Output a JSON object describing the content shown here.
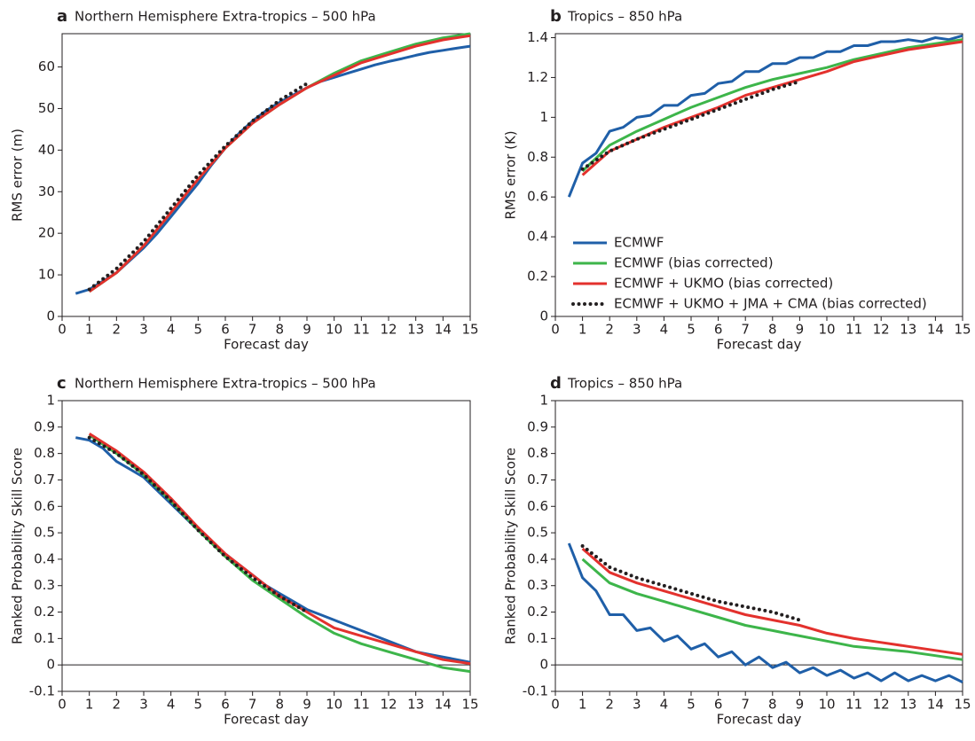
{
  "chart_data": [
    {
      "type": "line",
      "label": "a",
      "title": "Northern Hemisphere Extra-tropics – 500 hPa",
      "xlabel": "Forecast day",
      "ylabel": "RMS error (m)",
      "xlim": [
        0,
        15
      ],
      "xticks": [
        0,
        1,
        2,
        3,
        4,
        5,
        6,
        7,
        8,
        9,
        10,
        11,
        12,
        13,
        14,
        15
      ],
      "ylim": [
        0,
        68
      ],
      "yticks": [
        0,
        10,
        20,
        30,
        40,
        50,
        60
      ],
      "series": [
        {
          "color": "#1f5fa8",
          "x": [
            0.5,
            1,
            1.5,
            2,
            2.5,
            3,
            3.5,
            4,
            4.5,
            5,
            5.5,
            6,
            6.5,
            7,
            7.5,
            8,
            8.5,
            9,
            9.5,
            10,
            10.5,
            11,
            11.5,
            12,
            12.5,
            13,
            13.5,
            14,
            14.5,
            15
          ],
          "values": [
            5.5,
            6.5,
            8.5,
            10.5,
            13.5,
            16.5,
            20,
            24,
            28,
            32,
            36.5,
            40.5,
            44,
            47,
            49.5,
            51.5,
            53.3,
            55,
            56.5,
            57.5,
            58.5,
            59.5,
            60.5,
            61.3,
            62,
            62.8,
            63.5,
            64,
            64.5,
            65
          ]
        },
        {
          "color": "#3db54a",
          "x": [
            1,
            2,
            3,
            4,
            5,
            6,
            7,
            8,
            9,
            10,
            11,
            12,
            13,
            14,
            15
          ],
          "values": [
            6,
            10.5,
            17,
            25,
            33,
            40.5,
            46.5,
            51,
            55,
            58.5,
            61.5,
            63.5,
            65.5,
            67,
            68
          ]
        },
        {
          "color": "#e3312d",
          "x": [
            1,
            2,
            3,
            4,
            5,
            6,
            7,
            8,
            9,
            10,
            11,
            12,
            13,
            14,
            15
          ],
          "values": [
            6,
            10.5,
            17,
            25,
            33,
            40.5,
            46.5,
            51,
            55,
            58,
            61,
            63,
            65,
            66.5,
            67.5
          ]
        },
        {
          "color": "#231f20",
          "style": "dotted",
          "x": [
            1,
            2,
            3,
            4,
            5,
            6,
            7,
            8,
            9
          ],
          "values": [
            6.5,
            11.5,
            18,
            26,
            34,
            41,
            47,
            52,
            56
          ]
        }
      ]
    },
    {
      "type": "line",
      "label": "b",
      "title": "Tropics – 850 hPa",
      "xlabel": "Forecast day",
      "ylabel": "RMS error (K)",
      "xlim": [
        0,
        15
      ],
      "xticks": [
        0,
        1,
        2,
        3,
        4,
        5,
        6,
        7,
        8,
        9,
        10,
        11,
        12,
        13,
        14,
        15
      ],
      "ylim": [
        0,
        1.42
      ],
      "yticks": [
        0,
        0.2,
        0.4,
        0.6,
        0.8,
        1,
        1.2,
        1.4
      ],
      "legend": "lower left",
      "series": [
        {
          "name": "ECMWF",
          "color": "#1f5fa8",
          "x": [
            0.5,
            1,
            1.5,
            2,
            2.5,
            3,
            3.5,
            4,
            4.5,
            5,
            5.5,
            6,
            6.5,
            7,
            7.5,
            8,
            8.5,
            9,
            9.5,
            10,
            10.5,
            11,
            11.5,
            12,
            12.5,
            13,
            13.5,
            14,
            14.5,
            15
          ],
          "values": [
            0.6,
            0.77,
            0.82,
            0.93,
            0.95,
            1.0,
            1.01,
            1.06,
            1.06,
            1.11,
            1.12,
            1.17,
            1.18,
            1.23,
            1.23,
            1.27,
            1.27,
            1.3,
            1.3,
            1.33,
            1.33,
            1.36,
            1.36,
            1.38,
            1.38,
            1.39,
            1.38,
            1.4,
            1.39,
            1.41
          ]
        },
        {
          "name": "ECMWF (bias corrected)",
          "color": "#3db54a",
          "x": [
            1,
            2,
            3,
            4,
            5,
            6,
            7,
            8,
            9,
            10,
            11,
            12,
            13,
            14,
            15
          ],
          "values": [
            0.73,
            0.86,
            0.93,
            0.99,
            1.05,
            1.1,
            1.15,
            1.19,
            1.22,
            1.25,
            1.29,
            1.32,
            1.35,
            1.37,
            1.39
          ]
        },
        {
          "name": "ECMWF + UKMO (bias corrected)",
          "color": "#e3312d",
          "x": [
            1,
            2,
            3,
            4,
            5,
            6,
            7,
            8,
            9,
            10,
            11,
            12,
            13,
            14,
            15
          ],
          "values": [
            0.71,
            0.83,
            0.89,
            0.95,
            1.0,
            1.05,
            1.11,
            1.15,
            1.19,
            1.23,
            1.28,
            1.31,
            1.34,
            1.36,
            1.38
          ]
        },
        {
          "name": "ECMWF + UKMO + JMA + CMA (bias corrected)",
          "color": "#231f20",
          "style": "dotted",
          "x": [
            1,
            2,
            3,
            4,
            5,
            6,
            7,
            8,
            9
          ],
          "values": [
            0.74,
            0.83,
            0.89,
            0.94,
            0.99,
            1.04,
            1.09,
            1.14,
            1.18
          ]
        }
      ]
    },
    {
      "type": "line",
      "label": "c",
      "title": "Northern Hemisphere Extra-tropics – 500 hPa",
      "xlabel": "Forecast day",
      "ylabel": "Ranked Probability Skill Score",
      "xlim": [
        0,
        15
      ],
      "xticks": [
        0,
        1,
        2,
        3,
        4,
        5,
        6,
        7,
        8,
        9,
        10,
        11,
        12,
        13,
        14,
        15
      ],
      "ylim": [
        -0.1,
        1
      ],
      "yticks": [
        -0.1,
        0,
        0.1,
        0.2,
        0.3,
        0.4,
        0.5,
        0.6,
        0.7,
        0.8,
        0.9,
        1
      ],
      "zero_line": true,
      "series": [
        {
          "color": "#1f5fa8",
          "x": [
            0.5,
            1,
            1.5,
            2,
            2.5,
            3,
            3.5,
            4,
            4.5,
            5,
            5.5,
            6,
            6.5,
            7,
            7.5,
            8,
            8.5,
            9,
            9.5,
            10,
            10.5,
            11,
            11.5,
            12,
            12.5,
            13,
            13.5,
            14,
            14.5,
            15
          ],
          "values": [
            0.86,
            0.85,
            0.82,
            0.77,
            0.74,
            0.71,
            0.66,
            0.61,
            0.56,
            0.51,
            0.46,
            0.42,
            0.38,
            0.34,
            0.3,
            0.27,
            0.24,
            0.21,
            0.19,
            0.17,
            0.15,
            0.13,
            0.11,
            0.09,
            0.07,
            0.05,
            0.04,
            0.03,
            0.02,
            0.01
          ]
        },
        {
          "color": "#3db54a",
          "x": [
            1,
            2,
            3,
            4,
            5,
            6,
            7,
            8,
            9,
            10,
            11,
            12,
            13,
            14,
            15
          ],
          "values": [
            0.87,
            0.8,
            0.72,
            0.62,
            0.51,
            0.41,
            0.32,
            0.25,
            0.18,
            0.12,
            0.08,
            0.05,
            0.02,
            -0.01,
            -0.025
          ]
        },
        {
          "color": "#e3312d",
          "x": [
            1,
            2,
            3,
            4,
            5,
            6,
            7,
            8,
            9,
            10,
            11,
            12,
            13,
            14,
            15
          ],
          "values": [
            0.875,
            0.81,
            0.73,
            0.63,
            0.52,
            0.42,
            0.34,
            0.26,
            0.2,
            0.14,
            0.11,
            0.08,
            0.05,
            0.02,
            0.005
          ]
        },
        {
          "color": "#231f20",
          "style": "dotted",
          "x": [
            1,
            2,
            3,
            4,
            5,
            6,
            7,
            8,
            9
          ],
          "values": [
            0.86,
            0.8,
            0.72,
            0.62,
            0.51,
            0.41,
            0.33,
            0.26,
            0.2
          ]
        }
      ]
    },
    {
      "type": "line",
      "label": "d",
      "title": "Tropics – 850 hPa",
      "xlabel": "Forecast day",
      "ylabel": "Ranked Probability Skill Score",
      "xlim": [
        0,
        15
      ],
      "xticks": [
        0,
        1,
        2,
        3,
        4,
        5,
        6,
        7,
        8,
        9,
        10,
        11,
        12,
        13,
        14,
        15
      ],
      "ylim": [
        -0.1,
        1
      ],
      "yticks": [
        -0.1,
        0,
        0.1,
        0.2,
        0.3,
        0.4,
        0.5,
        0.6,
        0.7,
        0.8,
        0.9,
        1
      ],
      "zero_line": true,
      "series": [
        {
          "color": "#1f5fa8",
          "x": [
            0.5,
            1,
            1.5,
            2,
            2.5,
            3,
            3.5,
            4,
            4.5,
            5,
            5.5,
            6,
            6.5,
            7,
            7.5,
            8,
            8.5,
            9,
            9.5,
            10,
            10.5,
            11,
            11.5,
            12,
            12.5,
            13,
            13.5,
            14,
            14.5,
            15
          ],
          "values": [
            0.46,
            0.33,
            0.28,
            0.19,
            0.19,
            0.13,
            0.14,
            0.09,
            0.11,
            0.06,
            0.08,
            0.03,
            0.05,
            0.0,
            0.03,
            -0.01,
            0.01,
            -0.03,
            -0.01,
            -0.04,
            -0.02,
            -0.05,
            -0.03,
            -0.06,
            -0.03,
            -0.06,
            -0.04,
            -0.06,
            -0.04,
            -0.065
          ]
        },
        {
          "color": "#3db54a",
          "x": [
            1,
            2,
            3,
            4,
            5,
            6,
            7,
            8,
            9,
            10,
            11,
            12,
            13,
            14,
            15
          ],
          "values": [
            0.4,
            0.31,
            0.27,
            0.24,
            0.21,
            0.18,
            0.15,
            0.13,
            0.11,
            0.09,
            0.07,
            0.06,
            0.05,
            0.035,
            0.02
          ]
        },
        {
          "color": "#e3312d",
          "x": [
            1,
            2,
            3,
            4,
            5,
            6,
            7,
            8,
            9,
            10,
            11,
            12,
            13,
            14,
            15
          ],
          "values": [
            0.44,
            0.35,
            0.31,
            0.28,
            0.25,
            0.22,
            0.19,
            0.17,
            0.15,
            0.12,
            0.1,
            0.085,
            0.07,
            0.055,
            0.04
          ]
        },
        {
          "color": "#231f20",
          "style": "dotted",
          "x": [
            1,
            2,
            3,
            4,
            5,
            6,
            7,
            8,
            9
          ],
          "values": [
            0.45,
            0.37,
            0.33,
            0.3,
            0.27,
            0.24,
            0.22,
            0.2,
            0.17
          ]
        }
      ]
    }
  ]
}
